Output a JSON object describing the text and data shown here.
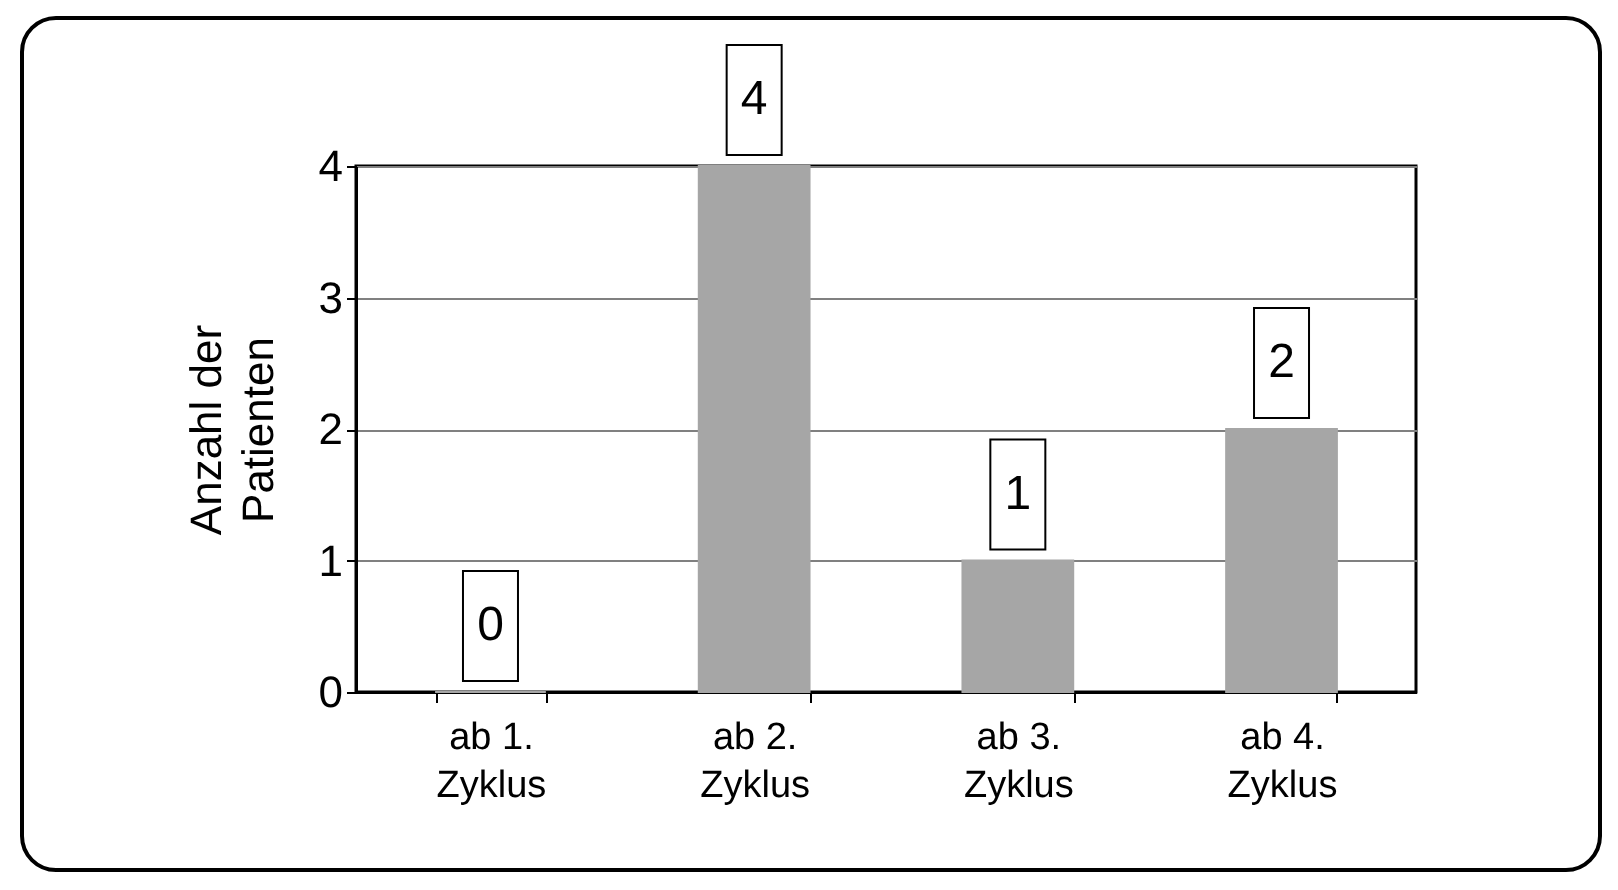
{
  "chart_data": {
    "type": "bar",
    "ylabel": "Anzahl der Patienten",
    "categories": [
      "ab 1. Zyklus",
      "ab 2. Zyklus",
      "ab 3. Zyklus",
      "ab 4. Zyklus"
    ],
    "values": [
      0,
      4,
      1,
      2
    ],
    "color": "#a6a6a6",
    "ylim": [
      0,
      4
    ],
    "yticks": [
      0,
      1,
      2,
      3,
      4
    ],
    "grid": "y",
    "data_labels": true
  }
}
